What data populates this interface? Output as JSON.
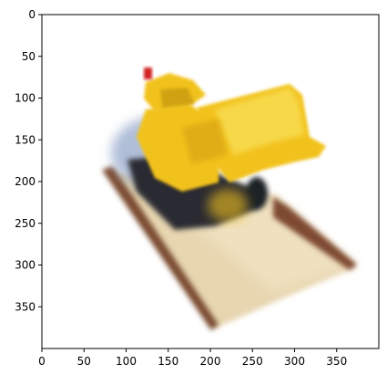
{
  "figure": {
    "image_width": 400,
    "image_height": 400,
    "x_ticks": [
      0,
      50,
      100,
      150,
      200,
      250,
      300,
      350
    ],
    "y_ticks": [
      0,
      50,
      100,
      150,
      200,
      250,
      300,
      350
    ],
    "axis_color": "#000000",
    "background": "#ffffff"
  },
  "image": {
    "subject": "Blurry rendered image of a yellow toy bulldozer/front loader with black treads on a tan base platform",
    "colors": {
      "yellow_body": "#F2C21B",
      "yellow_light": "#F7D84A",
      "tread_dark": "#2a2b33",
      "base_tan": "#E7D6B0",
      "base_edge_brown": "#7A4B33",
      "blue_gray_blur": "#8FA3C8",
      "red_light": "#D32020"
    }
  }
}
